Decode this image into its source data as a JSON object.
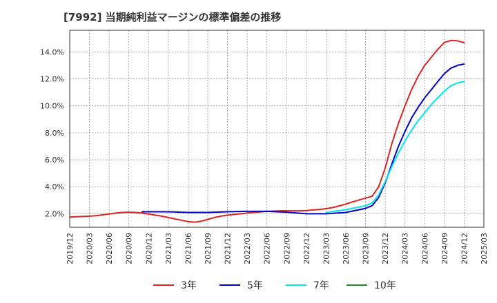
{
  "chart_data": {
    "type": "line",
    "title": "[7992]  当期純利益マージンの標準偏差の推移",
    "xlabel": "",
    "ylabel": "",
    "x_ticks": [
      "2019/12",
      "2020/03",
      "2020/06",
      "2020/09",
      "2020/12",
      "2021/03",
      "2021/06",
      "2021/09",
      "2021/12",
      "2022/03",
      "2022/06",
      "2022/09",
      "2022/12",
      "2023/03",
      "2023/06",
      "2023/09",
      "2023/12",
      "2024/03",
      "2024/06",
      "2024/09",
      "2024/12",
      "2025/03"
    ],
    "y_ticks": [
      "2.0%",
      "4.0%",
      "6.0%",
      "8.0%",
      "10.0%",
      "12.0%",
      "14.0%"
    ],
    "ylim": [
      1.0,
      15.6
    ],
    "grid": true,
    "legend_position": "bottom",
    "series": [
      {
        "name": "3年",
        "color": "#dd2222",
        "x": [
          "2019/12",
          "2020/01",
          "2020/02",
          "2020/03",
          "2020/04",
          "2020/05",
          "2020/06",
          "2020/07",
          "2020/08",
          "2020/09",
          "2020/10",
          "2020/11",
          "2020/12",
          "2021/01",
          "2021/02",
          "2021/03",
          "2021/04",
          "2021/05",
          "2021/06",
          "2021/07",
          "2021/08",
          "2021/09",
          "2021/10",
          "2021/11",
          "2021/12",
          "2022/01",
          "2022/02",
          "2022/03",
          "2022/04",
          "2022/05",
          "2022/06",
          "2022/07",
          "2022/08",
          "2022/09",
          "2022/10",
          "2022/11",
          "2022/12",
          "2023/01",
          "2023/02",
          "2023/03",
          "2023/04",
          "2023/05",
          "2023/06",
          "2023/07",
          "2023/08",
          "2023/09",
          "2023/10",
          "2023/11",
          "2023/12",
          "2024/01",
          "2024/02",
          "2024/03",
          "2024/04",
          "2024/05",
          "2024/06",
          "2024/07",
          "2024/08",
          "2024/09",
          "2024/10",
          "2024/11",
          "2024/12"
        ],
        "y": [
          1.75,
          1.78,
          1.8,
          1.82,
          1.86,
          1.92,
          1.98,
          2.05,
          2.1,
          2.12,
          2.1,
          2.05,
          1.98,
          1.9,
          1.82,
          1.72,
          1.62,
          1.52,
          1.42,
          1.38,
          1.45,
          1.58,
          1.72,
          1.82,
          1.9,
          1.95,
          2.0,
          2.05,
          2.1,
          2.14,
          2.18,
          2.2,
          2.22,
          2.22,
          2.22,
          2.22,
          2.24,
          2.28,
          2.32,
          2.38,
          2.46,
          2.58,
          2.72,
          2.88,
          3.02,
          3.16,
          3.3,
          4.0,
          5.4,
          7.2,
          8.7,
          10.0,
          11.2,
          12.2,
          13.0,
          13.6,
          14.2,
          14.7,
          14.85,
          14.82,
          14.68
        ]
      },
      {
        "name": "5年",
        "color": "#0000cc",
        "x": [
          "2020/11",
          "2020/12",
          "2021/03",
          "2021/06",
          "2021/09",
          "2021/12",
          "2022/03",
          "2022/06",
          "2022/09",
          "2022/12",
          "2023/03",
          "2023/06",
          "2023/09",
          "2023/10",
          "2023/11",
          "2023/12",
          "2024/01",
          "2024/02",
          "2024/03",
          "2024/04",
          "2024/05",
          "2024/06",
          "2024/07",
          "2024/08",
          "2024/09",
          "2024/10",
          "2024/11",
          "2024/12"
        ],
        "y": [
          2.15,
          2.15,
          2.15,
          2.1,
          2.1,
          2.15,
          2.18,
          2.18,
          2.12,
          2.0,
          2.0,
          2.1,
          2.4,
          2.6,
          3.2,
          4.3,
          5.7,
          7.0,
          8.1,
          9.1,
          9.9,
          10.6,
          11.2,
          11.8,
          12.4,
          12.8,
          13.0,
          13.1
        ]
      },
      {
        "name": "7年",
        "color": "#00e5ee",
        "x": [
          "2023/03",
          "2023/06",
          "2023/09",
          "2023/10",
          "2023/11",
          "2023/12",
          "2024/01",
          "2024/02",
          "2024/03",
          "2024/04",
          "2024/05",
          "2024/06",
          "2024/07",
          "2024/08",
          "2024/09",
          "2024/10",
          "2024/11",
          "2024/12"
        ],
        "y": [
          2.1,
          2.3,
          2.6,
          2.8,
          3.4,
          4.4,
          5.5,
          6.5,
          7.4,
          8.2,
          8.9,
          9.5,
          10.1,
          10.6,
          11.1,
          11.5,
          11.7,
          11.8
        ]
      },
      {
        "name": "10年",
        "color": "#228822",
        "x": [],
        "y": []
      }
    ]
  }
}
